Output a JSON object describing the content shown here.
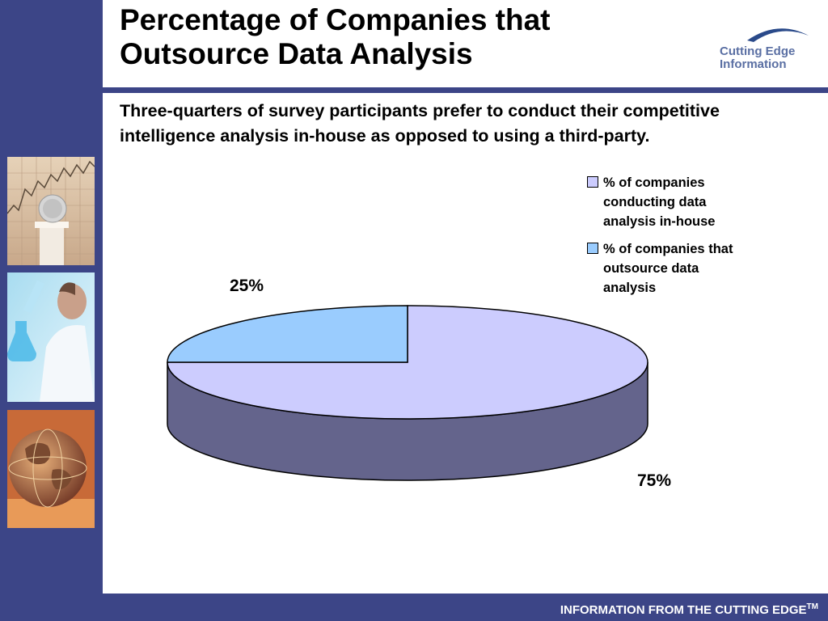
{
  "slide": {
    "title": "Percentage of Companies that Outsource Data Analysis",
    "subtitle": "Three-quarters of survey participants prefer to conduct their competitive intelligence analysis in-house as opposed to using a third-party.",
    "logo_line1": "Cutting Edge",
    "logo_line2": "Information",
    "footer_text": "INFORMATION FROM THE CUTTING EDGE",
    "footer_tm": "TM"
  },
  "colors": {
    "brand_navy": "#3c4587",
    "logo_blue": "#5a6fa3",
    "inhouse_top": "#ccccfe",
    "inhouse_side": "#64648c",
    "outsource_top": "#9accfe"
  },
  "icons": [
    "stock-chart-coin-photo",
    "scientist-flask-photo",
    "globe-photo",
    "logo-swoosh-icon"
  ],
  "chart_data": {
    "type": "pie",
    "style": "3d",
    "title": "",
    "series": [
      {
        "name": "% of companies conducting data analysis in-house",
        "value": 75,
        "label": "75%",
        "color": "#ccccfe"
      },
      {
        "name": "% of companies that outsource data analysis",
        "value": 25,
        "label": "25%",
        "color": "#9accfe"
      }
    ],
    "legend_position": "top-right"
  }
}
